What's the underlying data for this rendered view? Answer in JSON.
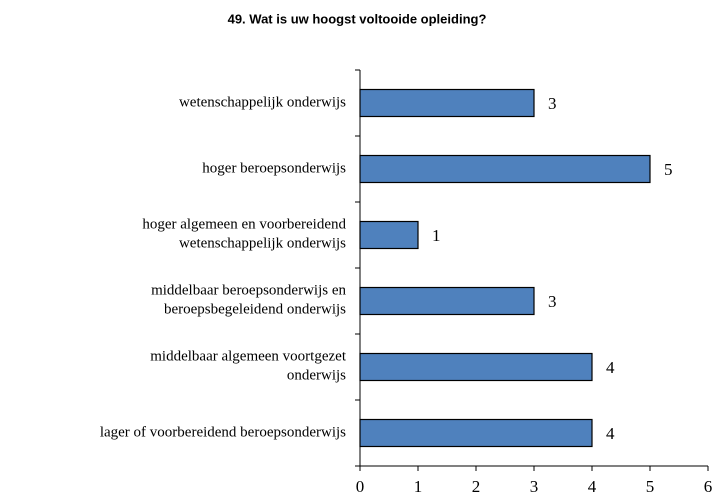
{
  "chart_data": {
    "type": "bar",
    "orientation": "horizontal",
    "title": "49. Wat is uw hoogst voltooide opleiding?",
    "categories": [
      "wetenschappelijk onderwijs",
      "hoger beroepsonderwijs",
      "hoger algemeen en voorbereidend\nwetenschappelijk onderwijs",
      "middelbaar beroepsonderwijs en\nberoepsbegeleidend onderwijs",
      "middelbaar algemeen voortgezet\nonderwijs",
      "lager of voorbereidend beroepsonderwijs"
    ],
    "values": [
      3,
      5,
      1,
      3,
      4,
      4
    ],
    "color": "#4f81bd",
    "xlim": [
      0,
      6
    ],
    "xticks": [
      0,
      1,
      2,
      3,
      4,
      5,
      6
    ],
    "grid": false
  }
}
